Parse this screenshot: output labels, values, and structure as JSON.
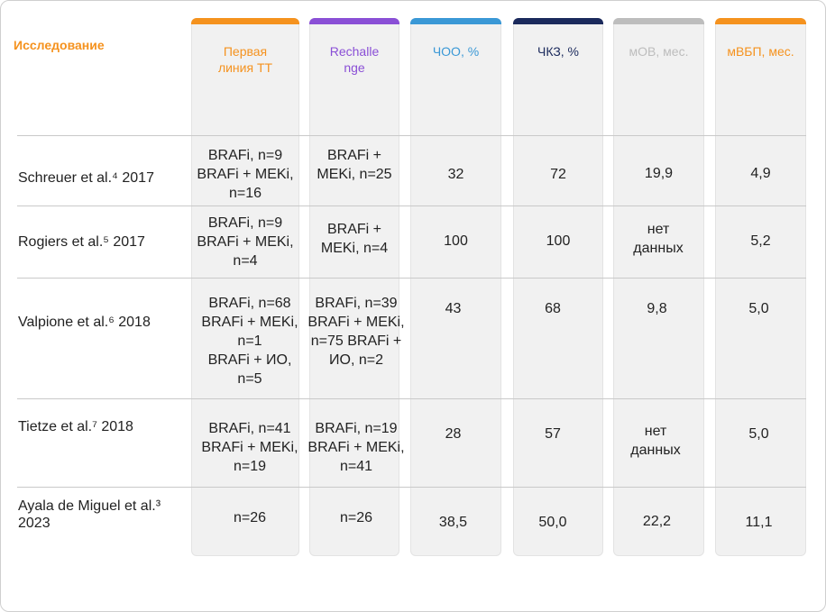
{
  "header": {
    "study_label": "Исследование",
    "columns": [
      {
        "lines": [
          "Первая",
          "линия ТТ"
        ],
        "color": "#f5921e"
      },
      {
        "lines": [
          "Rechalle",
          "nge"
        ],
        "color": "#8a4fd6"
      },
      {
        "lines": [
          "ЧОО, %"
        ],
        "color": "#3a98d6"
      },
      {
        "lines": [
          "ЧКЗ, %"
        ],
        "color": "#1b2a5c"
      },
      {
        "lines": [
          "мОВ, мес."
        ],
        "color": "#bdbdbd"
      },
      {
        "lines": [
          "мВБП, мес."
        ],
        "color": "#f5921e"
      }
    ]
  },
  "rows": [
    {
      "study": [
        "Schreuer et al.⁴ 2017"
      ],
      "first_line": [
        "BRAFi, n=9",
        "BRAFi + MEKi,",
        "n=16"
      ],
      "rechallenge": [
        "BRAFi +",
        "MEKi, n=25"
      ],
      "orr": "32",
      "dcr": "72",
      "mos": "19,9",
      "mpfs": "4,9"
    },
    {
      "study": [
        "Rogiers et al.⁵ 2017"
      ],
      "first_line": [
        "BRAFi, n=9",
        "BRAFi + MEKi,",
        "n=4"
      ],
      "rechallenge": [
        "BRAFi +",
        "MEKi, n=4"
      ],
      "orr": "100",
      "dcr": "100",
      "mos": "нет данных",
      "mpfs": "5,2"
    },
    {
      "study": [
        "Valpione et al.⁶ 2018"
      ],
      "first_line": [
        "BRAFi, n=68",
        "BRAFi + MEKi,",
        "n=1",
        "BRAFi + ИО,",
        "n=5"
      ],
      "rechallenge": [
        "BRAFi, n=39",
        "BRAFi + MEKi,",
        "n=75 BRAFi +",
        "ИО, n=2"
      ],
      "orr": "43",
      "dcr": "68",
      "mos": "9,8",
      "mpfs": "5,0"
    },
    {
      "study": [
        "Tietze et al.⁷ 2018"
      ],
      "first_line": [
        "BRAFi, n=41",
        "BRAFi + MEKi,",
        "n=19"
      ],
      "rechallenge": [
        "BRAFi, n=19",
        "BRAFi + MEKi,",
        "n=41"
      ],
      "orr": "28",
      "dcr": "57",
      "mos": "нет данных",
      "mpfs": "5,0"
    },
    {
      "study": [
        "Ayala de Miguel et al.³",
        "2023"
      ],
      "first_line": [
        "n=26"
      ],
      "rechallenge": [
        "n=26"
      ],
      "orr": "38,5",
      "dcr": "50,0",
      "mos": "22,2",
      "mpfs": "11,1"
    }
  ]
}
